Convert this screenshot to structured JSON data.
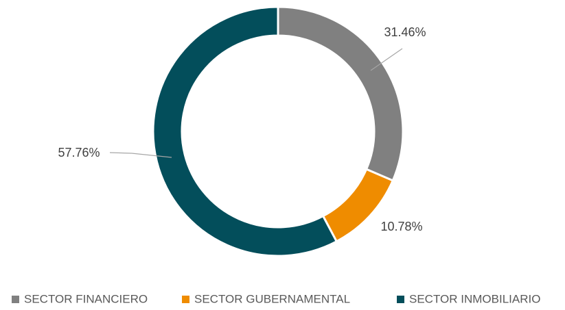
{
  "chart_data": {
    "type": "donut",
    "categories": [
      "SECTOR FINANCIERO",
      "SECTOR GUBERNAMENTAL",
      "SECTOR INMOBILIARIO"
    ],
    "values": [
      31.46,
      10.78,
      57.76
    ],
    "value_labels": [
      "31.46%",
      "10.78%",
      "57.76%"
    ],
    "colors": [
      "#808080",
      "#ef8c00",
      "#034e5b"
    ],
    "legend": "bottom"
  }
}
